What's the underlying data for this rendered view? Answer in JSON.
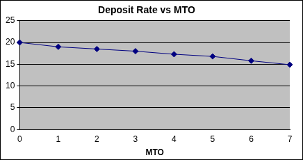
{
  "chart_data": {
    "type": "line",
    "title": "Deposit Rate vs MTO",
    "x_label": "MTO",
    "categories": [
      "0",
      "1",
      "2",
      "3",
      "4",
      "5",
      "6",
      "7"
    ],
    "values": [
      20,
      19,
      18.5,
      18,
      17.3,
      16.8,
      15.8,
      14.9
    ],
    "color": "#000080",
    "marker": "diamond",
    "line_style": "solid",
    "ylim": [
      0,
      25
    ],
    "yticks": [
      0,
      5,
      10,
      15,
      20,
      25
    ],
    "grid": true
  }
}
